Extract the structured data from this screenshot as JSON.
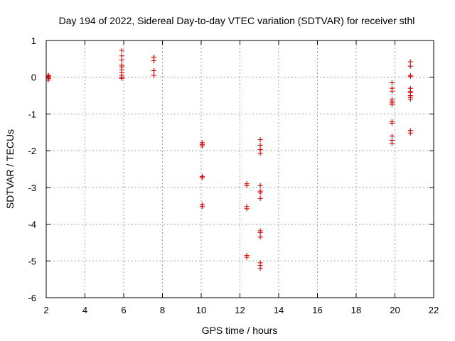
{
  "colors": {
    "series": "#e00000",
    "grid": "#a0a0a0",
    "frame": "#000000",
    "background": "#ffffff"
  },
  "chart_data": {
    "type": "scatter",
    "title": "Day 194 of 2022, Sidereal Day-to-day VTEC variation (SDTVAR) for receiver sthl",
    "xlabel": "GPS time / hours",
    "ylabel": "SDTVAR / TECUs",
    "xlim": [
      2,
      22
    ],
    "ylim": [
      -6,
      1
    ],
    "xticks": [
      2,
      4,
      6,
      8,
      10,
      12,
      14,
      16,
      18,
      20,
      22
    ],
    "yticks": [
      -6,
      -5,
      -4,
      -3,
      -2,
      -1,
      0,
      1
    ],
    "grid": true,
    "marker": "plus",
    "series": [
      {
        "name": "SDTVAR",
        "points": [
          [
            2.1,
            0.05
          ],
          [
            2.1,
            0.02
          ],
          [
            2.12,
            -0.03
          ],
          [
            2.1,
            -0.08
          ],
          [
            2.12,
            0.04
          ],
          [
            5.9,
            0.73
          ],
          [
            5.9,
            0.58
          ],
          [
            5.9,
            0.47
          ],
          [
            5.9,
            0.33
          ],
          [
            5.9,
            0.28
          ],
          [
            5.9,
            0.2
          ],
          [
            5.9,
            0.12
          ],
          [
            5.9,
            0.05
          ],
          [
            5.9,
            0.0
          ],
          [
            5.9,
            -0.03
          ],
          [
            7.55,
            0.55
          ],
          [
            7.55,
            0.45
          ],
          [
            7.55,
            0.18
          ],
          [
            7.55,
            0.05
          ],
          [
            10.05,
            -1.78
          ],
          [
            10.05,
            -1.83
          ],
          [
            10.05,
            -1.87
          ],
          [
            10.05,
            -2.7
          ],
          [
            10.05,
            -2.73
          ],
          [
            10.05,
            -3.47
          ],
          [
            10.05,
            -3.52
          ],
          [
            12.35,
            -2.9
          ],
          [
            12.35,
            -2.95
          ],
          [
            12.35,
            -3.52
          ],
          [
            12.35,
            -3.58
          ],
          [
            12.35,
            -4.85
          ],
          [
            12.35,
            -4.9
          ],
          [
            13.05,
            -1.7
          ],
          [
            13.05,
            -1.85
          ],
          [
            13.05,
            -1.97
          ],
          [
            13.05,
            -2.07
          ],
          [
            13.05,
            -2.95
          ],
          [
            13.05,
            -3.1
          ],
          [
            13.05,
            -3.15
          ],
          [
            13.05,
            -3.3
          ],
          [
            13.05,
            -4.18
          ],
          [
            13.05,
            -4.23
          ],
          [
            13.05,
            -4.35
          ],
          [
            13.05,
            -5.05
          ],
          [
            13.05,
            -5.12
          ],
          [
            13.05,
            -5.2
          ],
          [
            19.85,
            -0.15
          ],
          [
            19.85,
            -0.3
          ],
          [
            19.85,
            -0.38
          ],
          [
            19.85,
            -0.6
          ],
          [
            19.85,
            -0.65
          ],
          [
            19.85,
            -0.7
          ],
          [
            19.85,
            -0.75
          ],
          [
            19.85,
            -1.2
          ],
          [
            19.85,
            -1.25
          ],
          [
            19.85,
            -1.6
          ],
          [
            19.85,
            -1.72
          ],
          [
            19.85,
            -1.8
          ],
          [
            20.8,
            0.42
          ],
          [
            20.8,
            0.3
          ],
          [
            20.8,
            0.05
          ],
          [
            20.8,
            0.02
          ],
          [
            20.8,
            -0.3
          ],
          [
            20.8,
            -0.38
          ],
          [
            20.8,
            -0.42
          ],
          [
            20.8,
            -0.5
          ],
          [
            20.8,
            -0.55
          ],
          [
            20.8,
            -0.6
          ],
          [
            20.8,
            -1.45
          ],
          [
            20.8,
            -1.52
          ]
        ]
      }
    ]
  }
}
